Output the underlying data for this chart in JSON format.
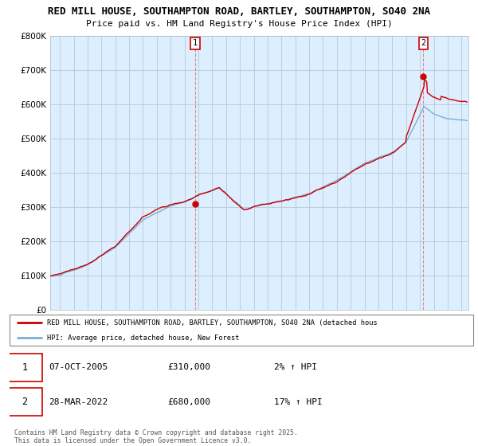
{
  "title_line1": "RED MILL HOUSE, SOUTHAMPTON ROAD, BARTLEY, SOUTHAMPTON, SO40 2NA",
  "title_line2": "Price paid vs. HM Land Registry's House Price Index (HPI)",
  "ylabel_vals": [
    "£0",
    "£100K",
    "£200K",
    "£300K",
    "£400K",
    "£500K",
    "£600K",
    "£700K",
    "£800K"
  ],
  "ylim": [
    0,
    800000
  ],
  "xlim_start": 1995.3,
  "xlim_end": 2025.5,
  "marker1_x": 2005.77,
  "marker1_y": 310000,
  "marker1_label": "1",
  "marker2_x": 2022.24,
  "marker2_y": 680000,
  "marker2_label": "2",
  "legend_line1": "RED MILL HOUSE, SOUTHAMPTON ROAD, BARTLEY, SOUTHAMPTON, SO40 2NA (detached hous",
  "legend_line2": "HPI: Average price, detached house, New Forest",
  "annotation1_num": "1",
  "annotation1_date": "07-OCT-2005",
  "annotation1_price": "£310,000",
  "annotation1_hpi": "2% ↑ HPI",
  "annotation2_num": "2",
  "annotation2_date": "28-MAR-2022",
  "annotation2_price": "£680,000",
  "annotation2_hpi": "17% ↑ HPI",
  "footer": "Contains HM Land Registry data © Crown copyright and database right 2025.\nThis data is licensed under the Open Government Licence v3.0.",
  "line_color_red": "#cc0000",
  "line_color_blue": "#7aafd4",
  "bg_color": "#ffffff",
  "plot_bg_color": "#ddeeff",
  "grid_color": "#bbccdd",
  "dashed_line_color": "#dd8888"
}
